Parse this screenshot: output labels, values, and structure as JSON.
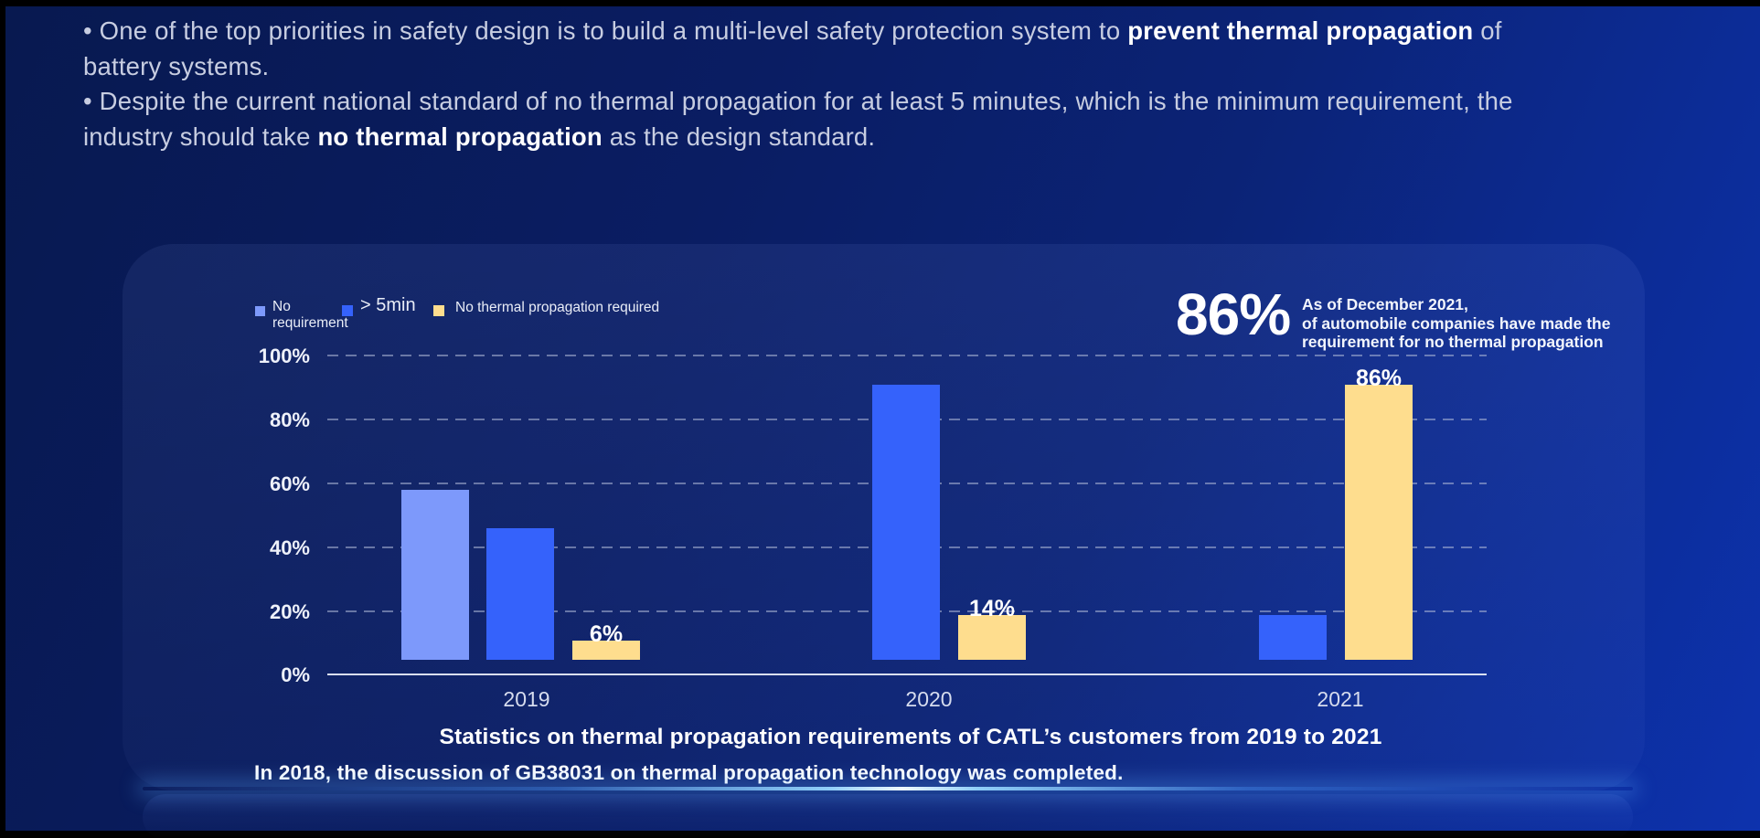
{
  "intro": {
    "bullets": [
      {
        "parts": [
          {
            "text": "• One of the top priorities in safety design is to build a multi-level safety protection system to ",
            "bold": false
          },
          {
            "text": "prevent thermal propagation",
            "bold": true
          },
          {
            "text": " of battery systems.",
            "bold": false
          }
        ]
      },
      {
        "parts": [
          {
            "text": "• Despite the current national standard of no thermal propagation for at least 5 minutes, which is the minimum requirement, the industry should take ",
            "bold": false
          },
          {
            "text": "no thermal propagation",
            "bold": true
          },
          {
            "text": " as the design standard.",
            "bold": false
          }
        ]
      }
    ]
  },
  "panel": {
    "legend": [
      {
        "label": "No requirement",
        "color": "#7d99fb"
      },
      {
        "label": "> 5min",
        "color": "#3562fb"
      },
      {
        "label": "No thermal propagation required",
        "color": "#fedd8e"
      }
    ],
    "highlight": {
      "value": "86%",
      "lines": [
        "As of December 2021,",
        "of automobile companies have made the",
        "requirement for no thermal propagation"
      ]
    },
    "title": "Statistics on thermal propagation requirements of CATL’s customers from 2019 to 2021",
    "footnote": "In 2018, the discussion of GB38031 on thermal propagation technology was completed."
  },
  "chart_data": {
    "type": "bar",
    "title": "Statistics on thermal propagation requirements of CATL’s customers from 2019 to 2021",
    "categories": [
      "2019",
      "2020",
      "2021"
    ],
    "series": [
      {
        "name": "No requirement",
        "color": "#7d99fb",
        "values": [
          53,
          null,
          null
        ]
      },
      {
        "name": "> 5min",
        "color": "#3562fb",
        "values": [
          41,
          86,
          14
        ]
      },
      {
        "name": "No thermal propagation required",
        "color": "#fedd8e",
        "values": [
          6,
          14,
          86
        ]
      }
    ],
    "y_ticks": [
      "100%",
      "80%",
      "60%",
      "40%",
      "20%",
      "0%"
    ],
    "ylim": [
      0,
      100
    ],
    "grid": "dashed horizontal gridlines at 20% steps",
    "legend_position": "top-left",
    "data_labels": [
      {
        "category": "2019",
        "series": "No thermal propagation required",
        "text": "6%"
      },
      {
        "category": "2020",
        "series": "No thermal propagation required",
        "text": "14%"
      },
      {
        "category": "2021",
        "series": "No thermal propagation required",
        "text": "86%"
      }
    ]
  }
}
